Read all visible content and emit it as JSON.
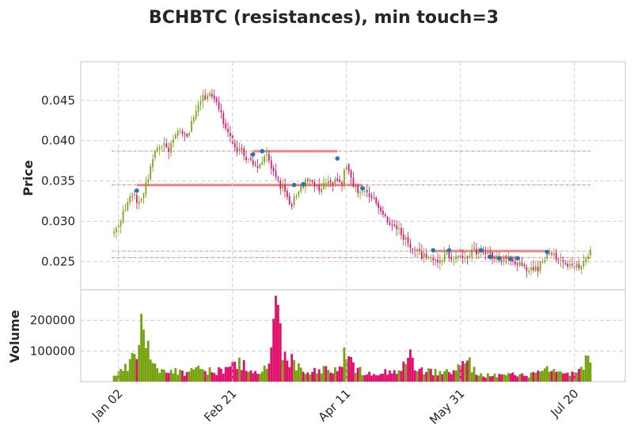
{
  "title": "BCHBTC (resistances), min touch=3",
  "chart_data": {
    "type": "candlestick",
    "title": "BCHBTC (resistances), min touch=3",
    "colors": {
      "up": "#77a20f",
      "down": "#e0106a",
      "resistance": "#f08080",
      "touch": "#1f77b4",
      "grid": "#d0d0d0"
    },
    "price_axis": {
      "ylabel": "Price",
      "ylim": [
        0.0215,
        0.0498
      ],
      "ticks": [
        0.025,
        0.03,
        0.035,
        0.04,
        0.045
      ],
      "tick_labels": [
        "0.025",
        "0.030",
        "0.035",
        "0.040",
        "0.045"
      ]
    },
    "volume_axis": {
      "ylabel": "Volume",
      "ylim": [
        0,
        300000
      ],
      "ticks": [
        100000,
        200000
      ],
      "tick_labels": [
        "100000",
        "200000"
      ]
    },
    "x_axis": {
      "ticks": [
        2,
        52,
        102,
        152,
        202
      ],
      "tick_labels": [
        "Jan 02",
        "Feb 21",
        "Apr 11",
        "May 31",
        "Jul 20"
      ]
    },
    "anchors": [
      [
        0,
        0.0285
      ],
      [
        8,
        0.0335
      ],
      [
        11,
        0.032
      ],
      [
        15,
        0.0355
      ],
      [
        17,
        0.038
      ],
      [
        20,
        0.0395
      ],
      [
        24,
        0.039
      ],
      [
        28,
        0.041
      ],
      [
        32,
        0.0405
      ],
      [
        38,
        0.045
      ],
      [
        42,
        0.046
      ],
      [
        46,
        0.044
      ],
      [
        50,
        0.041
      ],
      [
        54,
        0.039
      ],
      [
        58,
        0.038
      ],
      [
        63,
        0.037
      ],
      [
        67,
        0.038
      ],
      [
        70,
        0.0358
      ],
      [
        74,
        0.034
      ],
      [
        78,
        0.032
      ],
      [
        82,
        0.0345
      ],
      [
        86,
        0.035
      ],
      [
        90,
        0.034
      ],
      [
        95,
        0.0348
      ],
      [
        100,
        0.035
      ],
      [
        102,
        0.037
      ],
      [
        104,
        0.0355
      ],
      [
        106,
        0.034
      ],
      [
        110,
        0.0335
      ],
      [
        114,
        0.0325
      ],
      [
        118,
        0.031
      ],
      [
        122,
        0.0295
      ],
      [
        126,
        0.0285
      ],
      [
        130,
        0.027
      ],
      [
        134,
        0.026
      ],
      [
        138,
        0.0252
      ],
      [
        142,
        0.0252
      ],
      [
        146,
        0.0258
      ],
      [
        150,
        0.0255
      ],
      [
        154,
        0.0258
      ],
      [
        158,
        0.0262
      ],
      [
        162,
        0.0262
      ],
      [
        166,
        0.0256
      ],
      [
        170,
        0.0252
      ],
      [
        174,
        0.0252
      ],
      [
        178,
        0.0245
      ],
      [
        182,
        0.024
      ],
      [
        186,
        0.0242
      ],
      [
        190,
        0.0258
      ],
      [
        194,
        0.0255
      ],
      [
        198,
        0.0245
      ],
      [
        202,
        0.0242
      ],
      [
        206,
        0.0248
      ],
      [
        209,
        0.0262
      ]
    ],
    "volume_anchors": [
      [
        0,
        20000
      ],
      [
        6,
        50000
      ],
      [
        10,
        90000
      ],
      [
        12,
        200000
      ],
      [
        14,
        150000
      ],
      [
        16,
        60000
      ],
      [
        20,
        45000
      ],
      [
        26,
        40000
      ],
      [
        30,
        30000
      ],
      [
        36,
        50000
      ],
      [
        42,
        35000
      ],
      [
        48,
        40000
      ],
      [
        52,
        55000
      ],
      [
        56,
        60000
      ],
      [
        60,
        45000
      ],
      [
        64,
        35000
      ],
      [
        68,
        50000
      ],
      [
        70,
        185000
      ],
      [
        72,
        275000
      ],
      [
        74,
        95000
      ],
      [
        76,
        60000
      ],
      [
        78,
        100000
      ],
      [
        80,
        60000
      ],
      [
        84,
        35000
      ],
      [
        90,
        40000
      ],
      [
        96,
        45000
      ],
      [
        100,
        65000
      ],
      [
        102,
        100000
      ],
      [
        106,
        40000
      ],
      [
        110,
        35000
      ],
      [
        116,
        30000
      ],
      [
        122,
        35000
      ],
      [
        126,
        50000
      ],
      [
        130,
        80000
      ],
      [
        134,
        40000
      ],
      [
        138,
        35000
      ],
      [
        144,
        30000
      ],
      [
        150,
        40000
      ],
      [
        155,
        70000
      ],
      [
        160,
        25000
      ],
      [
        166,
        20000
      ],
      [
        172,
        25000
      ],
      [
        178,
        20000
      ],
      [
        184,
        25000
      ],
      [
        190,
        40000
      ],
      [
        196,
        25000
      ],
      [
        202,
        30000
      ],
      [
        206,
        45000
      ],
      [
        209,
        100000
      ]
    ],
    "resistances": [
      {
        "level": 0.0387,
        "from": 61,
        "to": 98
      },
      {
        "level": 0.0345,
        "from": 10,
        "to": 109
      },
      {
        "level": 0.0263,
        "from": 140,
        "to": 190
      },
      {
        "level": 0.0255,
        "from": 164,
        "to": 178
      }
    ],
    "touches": [
      [
        10,
        0.0338
      ],
      [
        61,
        0.0383
      ],
      [
        65,
        0.0387
      ],
      [
        79,
        0.0345
      ],
      [
        83,
        0.0346
      ],
      [
        98,
        0.0378
      ],
      [
        109,
        0.0341
      ],
      [
        140,
        0.0264
      ],
      [
        147,
        0.0264
      ],
      [
        161,
        0.0264
      ],
      [
        165,
        0.0256
      ],
      [
        169,
        0.0254
      ],
      [
        174,
        0.0253
      ],
      [
        177,
        0.0254
      ],
      [
        190,
        0.0262
      ]
    ]
  }
}
